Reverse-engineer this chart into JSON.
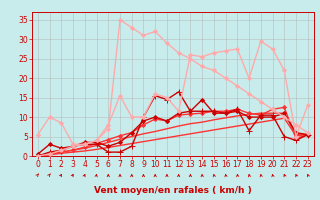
{
  "title": "",
  "xlabel": "Vent moyen/en rafales ( km/h )",
  "background_color": "#c8ecec",
  "grid_color": "#b0b0b0",
  "xlim": [
    -0.5,
    23.5
  ],
  "ylim": [
    0,
    37
  ],
  "yticks": [
    0,
    5,
    10,
    15,
    20,
    25,
    30,
    35
  ],
  "xticks": [
    0,
    1,
    2,
    3,
    4,
    5,
    6,
    7,
    8,
    9,
    10,
    11,
    12,
    13,
    14,
    15,
    16,
    17,
    18,
    19,
    20,
    21,
    22,
    23
  ],
  "lines": [
    {
      "x": [
        0,
        1,
        2,
        3,
        4,
        5,
        6,
        7,
        8,
        9,
        10,
        11,
        12,
        13,
        14,
        15,
        16,
        17,
        18,
        19,
        20,
        21,
        22,
        23
      ],
      "y": [
        0,
        0.3,
        0.7,
        1.0,
        1.3,
        1.7,
        2.2,
        2.7,
        3.2,
        3.7,
        4.2,
        4.7,
        5.2,
        5.7,
        6.2,
        6.7,
        7.2,
        7.7,
        8.2,
        8.7,
        9.2,
        9.7,
        5.2,
        5.5
      ],
      "color": "#ff3333",
      "lw": 1.0,
      "marker": null,
      "ls": "-"
    },
    {
      "x": [
        0,
        1,
        2,
        3,
        4,
        5,
        6,
        7,
        8,
        9,
        10,
        11,
        12,
        13,
        14,
        15,
        16,
        17,
        18,
        19,
        20,
        21,
        22,
        23
      ],
      "y": [
        0,
        0.5,
        1.0,
        1.5,
        2.0,
        2.7,
        3.5,
        4.3,
        5.0,
        5.7,
        6.3,
        7.0,
        7.7,
        8.3,
        8.7,
        9.3,
        9.8,
        10.3,
        10.7,
        11.0,
        11.0,
        11.0,
        5.5,
        5.5
      ],
      "color": "#ff3333",
      "lw": 1.0,
      "marker": null,
      "ls": "-"
    },
    {
      "x": [
        0,
        1,
        2,
        3,
        4,
        5,
        6,
        7,
        8,
        9,
        10,
        11,
        12,
        13,
        14,
        15,
        16,
        17,
        18,
        19,
        20,
        21,
        22,
        23
      ],
      "y": [
        0,
        0.5,
        1.0,
        1.5,
        2.3,
        3.2,
        4.2,
        5.2,
        6.0,
        8.0,
        9.5,
        9.0,
        10.5,
        10.8,
        11.0,
        11.5,
        11.5,
        12.0,
        11.0,
        10.5,
        12.0,
        12.5,
        4.5,
        5.5
      ],
      "color": "#ff3333",
      "lw": 1.0,
      "marker": "D",
      "ms": 2.0,
      "ls": "-"
    },
    {
      "x": [
        0,
        1,
        2,
        3,
        4,
        5,
        6,
        7,
        8,
        9,
        10,
        11,
        12,
        13,
        14,
        15,
        16,
        17,
        18,
        19,
        20,
        21,
        22,
        23
      ],
      "y": [
        0,
        1.0,
        1.5,
        2.5,
        3.0,
        3.0,
        1.0,
        1.0,
        2.5,
        10,
        15.5,
        14.5,
        16.5,
        11.5,
        11.5,
        11.5,
        11.0,
        12.0,
        6.5,
        10.5,
        10.5,
        5.0,
        4.0,
        5.5
      ],
      "color": "#cc0000",
      "lw": 1.0,
      "marker": "+",
      "ms": 4,
      "ls": "-"
    },
    {
      "x": [
        0,
        1,
        2,
        3,
        4,
        5,
        6,
        7,
        8,
        9,
        10,
        11,
        12,
        13,
        14,
        15,
        16,
        17,
        18,
        19,
        20,
        21,
        22,
        23
      ],
      "y": [
        0.5,
        3.0,
        2.0,
        2.5,
        3.5,
        3.5,
        2.5,
        3.5,
        6.0,
        9.0,
        10.0,
        9.0,
        11.0,
        11.5,
        14.5,
        11.0,
        11.0,
        11.5,
        10.0,
        10.0,
        10.0,
        11.0,
        6.0,
        5.5
      ],
      "color": "#cc0000",
      "lw": 1.0,
      "marker": "D",
      "ms": 2.0,
      "ls": "-"
    },
    {
      "x": [
        0,
        1,
        2,
        3,
        4,
        5,
        6,
        7,
        8,
        9,
        10,
        11,
        12,
        13,
        14,
        15,
        16,
        17,
        18,
        19,
        20,
        21,
        22,
        23
      ],
      "y": [
        5.5,
        10.0,
        8.5,
        3.0,
        3.0,
        4.0,
        8.0,
        15.5,
        10.0,
        10.0,
        16.0,
        15.0,
        11.5,
        26.0,
        25.5,
        26.5,
        27.0,
        27.5,
        20.0,
        29.5,
        27.5,
        22.0,
        5.0,
        13.0
      ],
      "color": "#ffaaaa",
      "lw": 1.0,
      "marker": "D",
      "ms": 2.0,
      "ls": "-"
    },
    {
      "x": [
        0,
        1,
        2,
        3,
        4,
        5,
        6,
        7,
        8,
        9,
        10,
        11,
        12,
        13,
        14,
        15,
        16,
        17,
        18,
        19,
        20,
        21,
        22,
        23
      ],
      "y": [
        0,
        0.5,
        1.5,
        2.5,
        3.0,
        4.0,
        7.0,
        35.0,
        33.0,
        31.0,
        32.0,
        29.0,
        26.5,
        25.0,
        23.0,
        22.0,
        20.0,
        18.0,
        16.0,
        14.0,
        12.0,
        10.0,
        8.0,
        6.0
      ],
      "color": "#ffaaaa",
      "lw": 1.0,
      "marker": "D",
      "ms": 2.0,
      "ls": "-"
    }
  ],
  "tick_fontsize": 5.5,
  "label_fontsize": 6.5,
  "arrow_angles": [
    45,
    45,
    60,
    60,
    70,
    80,
    90,
    90,
    270,
    270,
    270,
    270,
    270,
    270,
    270,
    260,
    260,
    260,
    260,
    260,
    260,
    250,
    250,
    250
  ]
}
